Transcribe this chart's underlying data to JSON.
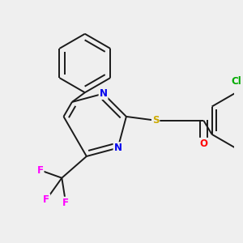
{
  "background_color": "#efefef",
  "bond_color": "#1a1a1a",
  "atom_colors": {
    "N": "#0000ee",
    "S": "#ccaa00",
    "O": "#ff0000",
    "F": "#ff00ff",
    "Cl": "#00aa00",
    "C": "#1a1a1a"
  },
  "font_size": 8.5,
  "figsize": [
    3.0,
    3.0
  ],
  "dpi": 100
}
